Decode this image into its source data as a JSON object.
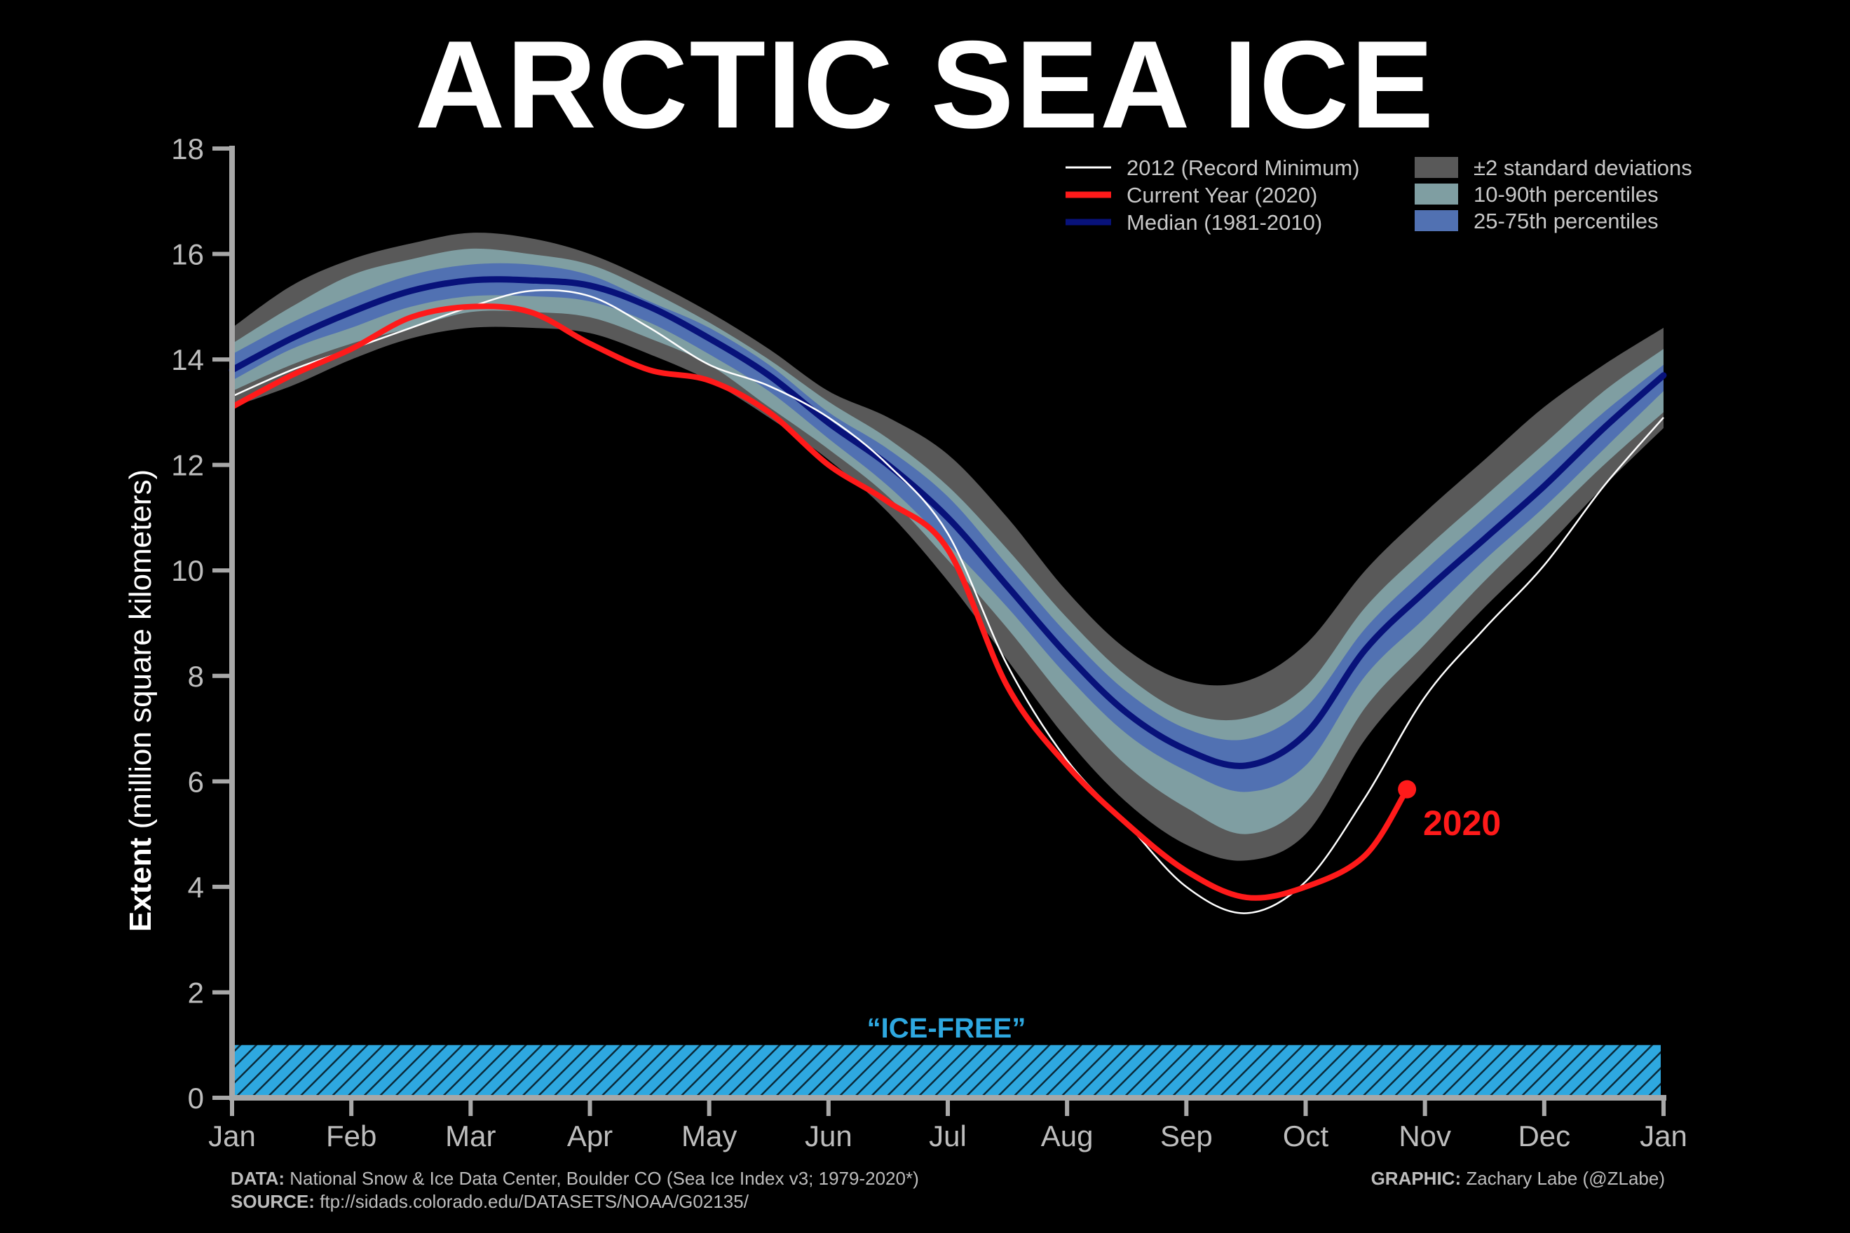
{
  "title": "ARCTIC SEA ICE",
  "colors": {
    "background": "#000000",
    "std2": "#595959",
    "p10_90": "#7f9ea2",
    "p25_75": "#5171b2",
    "median": "#08127a",
    "current": "#ff1a1a",
    "record": "#ffffff",
    "ice_free": "#2ea8e0",
    "axis": "#a8a8a8"
  },
  "legend": {
    "record_label": "2012 (Record Minimum)",
    "current_label": "Current Year (2020)",
    "median_label": "Median (1981-2010)",
    "std_label": "±2 standard deviations",
    "p10_90_label": "10-90th percentiles",
    "p25_75_label": "25-75th percentiles"
  },
  "annotations": {
    "ice_free": "“ICE-FREE”",
    "current_year": "2020"
  },
  "y_axis": {
    "label_bold": "Extent",
    "label_rest": " (million square kilometers)"
  },
  "footer": {
    "data_label": "DATA:",
    "data_text": " National Snow & Ice Data Center, Boulder CO (Sea Ice Index v3; 1979-2020*)",
    "source_label": "SOURCE:",
    "source_text": " ftp://sidads.colorado.edu/DATASETS/NOAA/G02135/",
    "graphic_label": "GRAPHIC:",
    "graphic_text": " Zachary Labe (@ZLabe)"
  },
  "chart_data": {
    "type": "line",
    "x_unit": "month (0 = Jan 1, 12 = Jan 1 of next year)",
    "xticks": [
      "Jan",
      "Feb",
      "Mar",
      "Apr",
      "May",
      "Jun",
      "Jul",
      "Aug",
      "Sep",
      "Oct",
      "Nov",
      "Dec",
      "Jan"
    ],
    "yticks": [
      0,
      2,
      4,
      6,
      8,
      10,
      12,
      14,
      16,
      18
    ],
    "xlim": [
      0,
      12
    ],
    "ylim": [
      0,
      18
    ],
    "grid": false,
    "legend_position": "top-right",
    "ice_free_threshold": 1,
    "x": [
      0,
      0.5,
      1,
      1.5,
      2,
      2.5,
      3,
      3.5,
      4,
      4.5,
      5,
      5.5,
      6,
      6.5,
      7,
      7.5,
      8,
      8.5,
      9,
      9.5,
      10,
      10.5,
      11,
      11.5,
      12
    ],
    "median": [
      13.8,
      14.4,
      14.9,
      15.3,
      15.5,
      15.5,
      15.4,
      15.0,
      14.4,
      13.7,
      12.8,
      12.0,
      11.0,
      9.7,
      8.4,
      7.3,
      6.6,
      6.3,
      6.9,
      8.5,
      9.6,
      10.6,
      11.6,
      12.7,
      13.7
    ],
    "std2_upper": [
      14.6,
      15.4,
      15.9,
      16.2,
      16.4,
      16.3,
      16.0,
      15.5,
      14.9,
      14.2,
      13.4,
      12.9,
      12.2,
      11.0,
      9.6,
      8.5,
      7.9,
      7.9,
      8.6,
      10.0,
      11.1,
      12.1,
      13.1,
      13.9,
      14.6
    ],
    "p10_90_upper": [
      14.3,
      15.0,
      15.6,
      15.9,
      16.1,
      16.0,
      15.8,
      15.3,
      14.7,
      14.0,
      13.2,
      12.5,
      11.6,
      10.4,
      9.1,
      8.0,
      7.3,
      7.2,
      7.8,
      9.3,
      10.4,
      11.4,
      12.4,
      13.4,
      14.2
    ],
    "p25_75_upper": [
      14.1,
      14.7,
      15.2,
      15.6,
      15.8,
      15.8,
      15.6,
      15.1,
      14.6,
      13.9,
      13.0,
      12.3,
      11.4,
      10.1,
      8.8,
      7.7,
      7.0,
      6.8,
      7.4,
      8.9,
      10.0,
      11.0,
      12.0,
      13.0,
      13.9
    ],
    "p25_75_lower": [
      13.6,
      14.2,
      14.6,
      15.0,
      15.2,
      15.2,
      15.1,
      14.7,
      14.1,
      13.4,
      12.5,
      11.6,
      10.5,
      9.3,
      8.0,
      6.9,
      6.2,
      5.8,
      6.3,
      8.0,
      9.1,
      10.2,
      11.2,
      12.3,
      13.4
    ],
    "p10_90_lower": [
      13.4,
      13.9,
      14.3,
      14.6,
      14.9,
      14.9,
      14.8,
      14.4,
      13.9,
      13.1,
      12.3,
      11.4,
      10.2,
      8.9,
      7.5,
      6.3,
      5.5,
      5.0,
      5.6,
      7.4,
      8.6,
      9.8,
      10.9,
      12.0,
      13.0
    ],
    "std2_lower": [
      13.1,
      13.5,
      14.0,
      14.4,
      14.6,
      14.6,
      14.5,
      14.1,
      13.6,
      12.9,
      12.1,
      11.1,
      9.8,
      8.3,
      6.8,
      5.6,
      4.8,
      4.5,
      5.0,
      6.8,
      8.1,
      9.3,
      10.4,
      11.6,
      12.7
    ],
    "series": [
      {
        "name": "2012 (Record Minimum)",
        "values": [
          13.3,
          13.8,
          14.2,
          14.6,
          15.0,
          15.3,
          15.2,
          14.6,
          13.9,
          13.5,
          12.9,
          12.0,
          10.7,
          8.2,
          6.4,
          5.2,
          4.0,
          3.5,
          4.1,
          5.7,
          7.6,
          8.9,
          10.1,
          11.6,
          12.9
        ]
      },
      {
        "name": "Current Year (2020)",
        "values": [
          13.1,
          13.7,
          14.2,
          14.8,
          15.0,
          14.9,
          14.3,
          13.8,
          13.6,
          13.0,
          12.0,
          11.3,
          10.4,
          7.8,
          6.3,
          5.2,
          4.3,
          3.8,
          4.0,
          4.6,
          5.8,
          null,
          null,
          null,
          null
        ]
      }
    ],
    "current_endpoint": {
      "x": 9.85,
      "y": 5.85,
      "label": "2020"
    }
  }
}
